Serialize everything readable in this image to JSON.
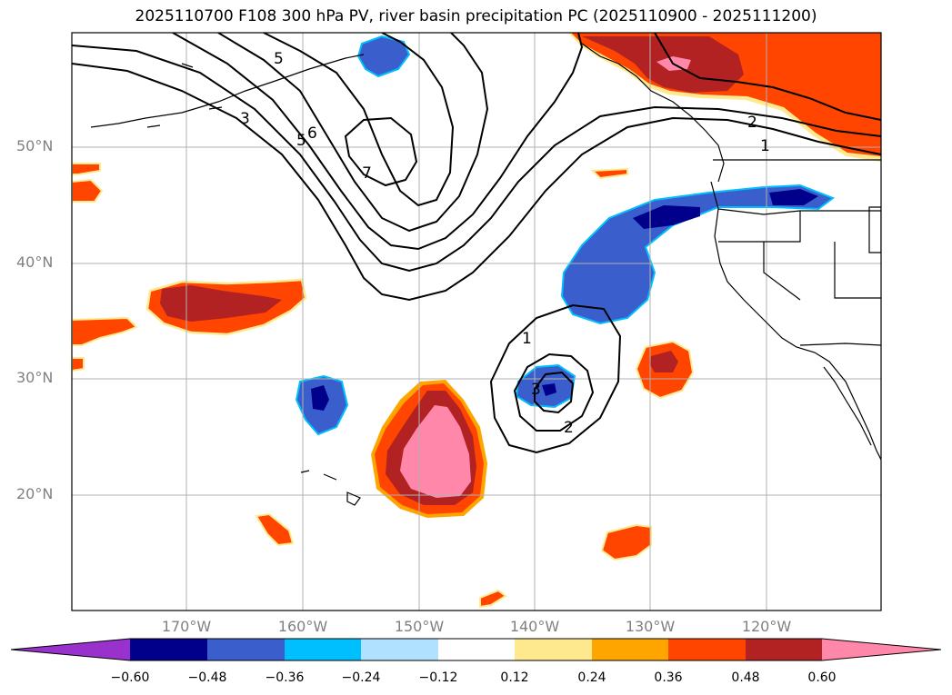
{
  "title": "2025110700 F108 300 hPa PV, river basin precipitation PC (2025110900 - 2025111200)",
  "lat_labels": [
    "50°N",
    "40°N",
    "30°N",
    "20°N"
  ],
  "lon_labels": [
    "170°W",
    "160°W",
    "150°W",
    "140°W",
    "130°W",
    "120°W"
  ],
  "contour_labels": [
    "5",
    "3",
    "5",
    "6",
    "7",
    "1",
    "2",
    "1",
    "3",
    "2"
  ],
  "colorbar": {
    "ticks": [
      "−0.60",
      "−0.48",
      "−0.36",
      "−0.24",
      "−0.12",
      "0.12",
      "0.24",
      "0.36",
      "0.48",
      "0.60"
    ],
    "colors": [
      "#9932cc",
      "#00008b",
      "#3a5fcd",
      "#00bfff",
      "#b0e2ff",
      "#ffffff",
      "#ffe98e",
      "#ffa500",
      "#ff4500",
      "#b22222",
      "#ff88aa"
    ]
  },
  "colors": {
    "grid": "#b0b0b0",
    "coast": "#000000",
    "contour": "#000000",
    "text_axis": "#808080"
  }
}
